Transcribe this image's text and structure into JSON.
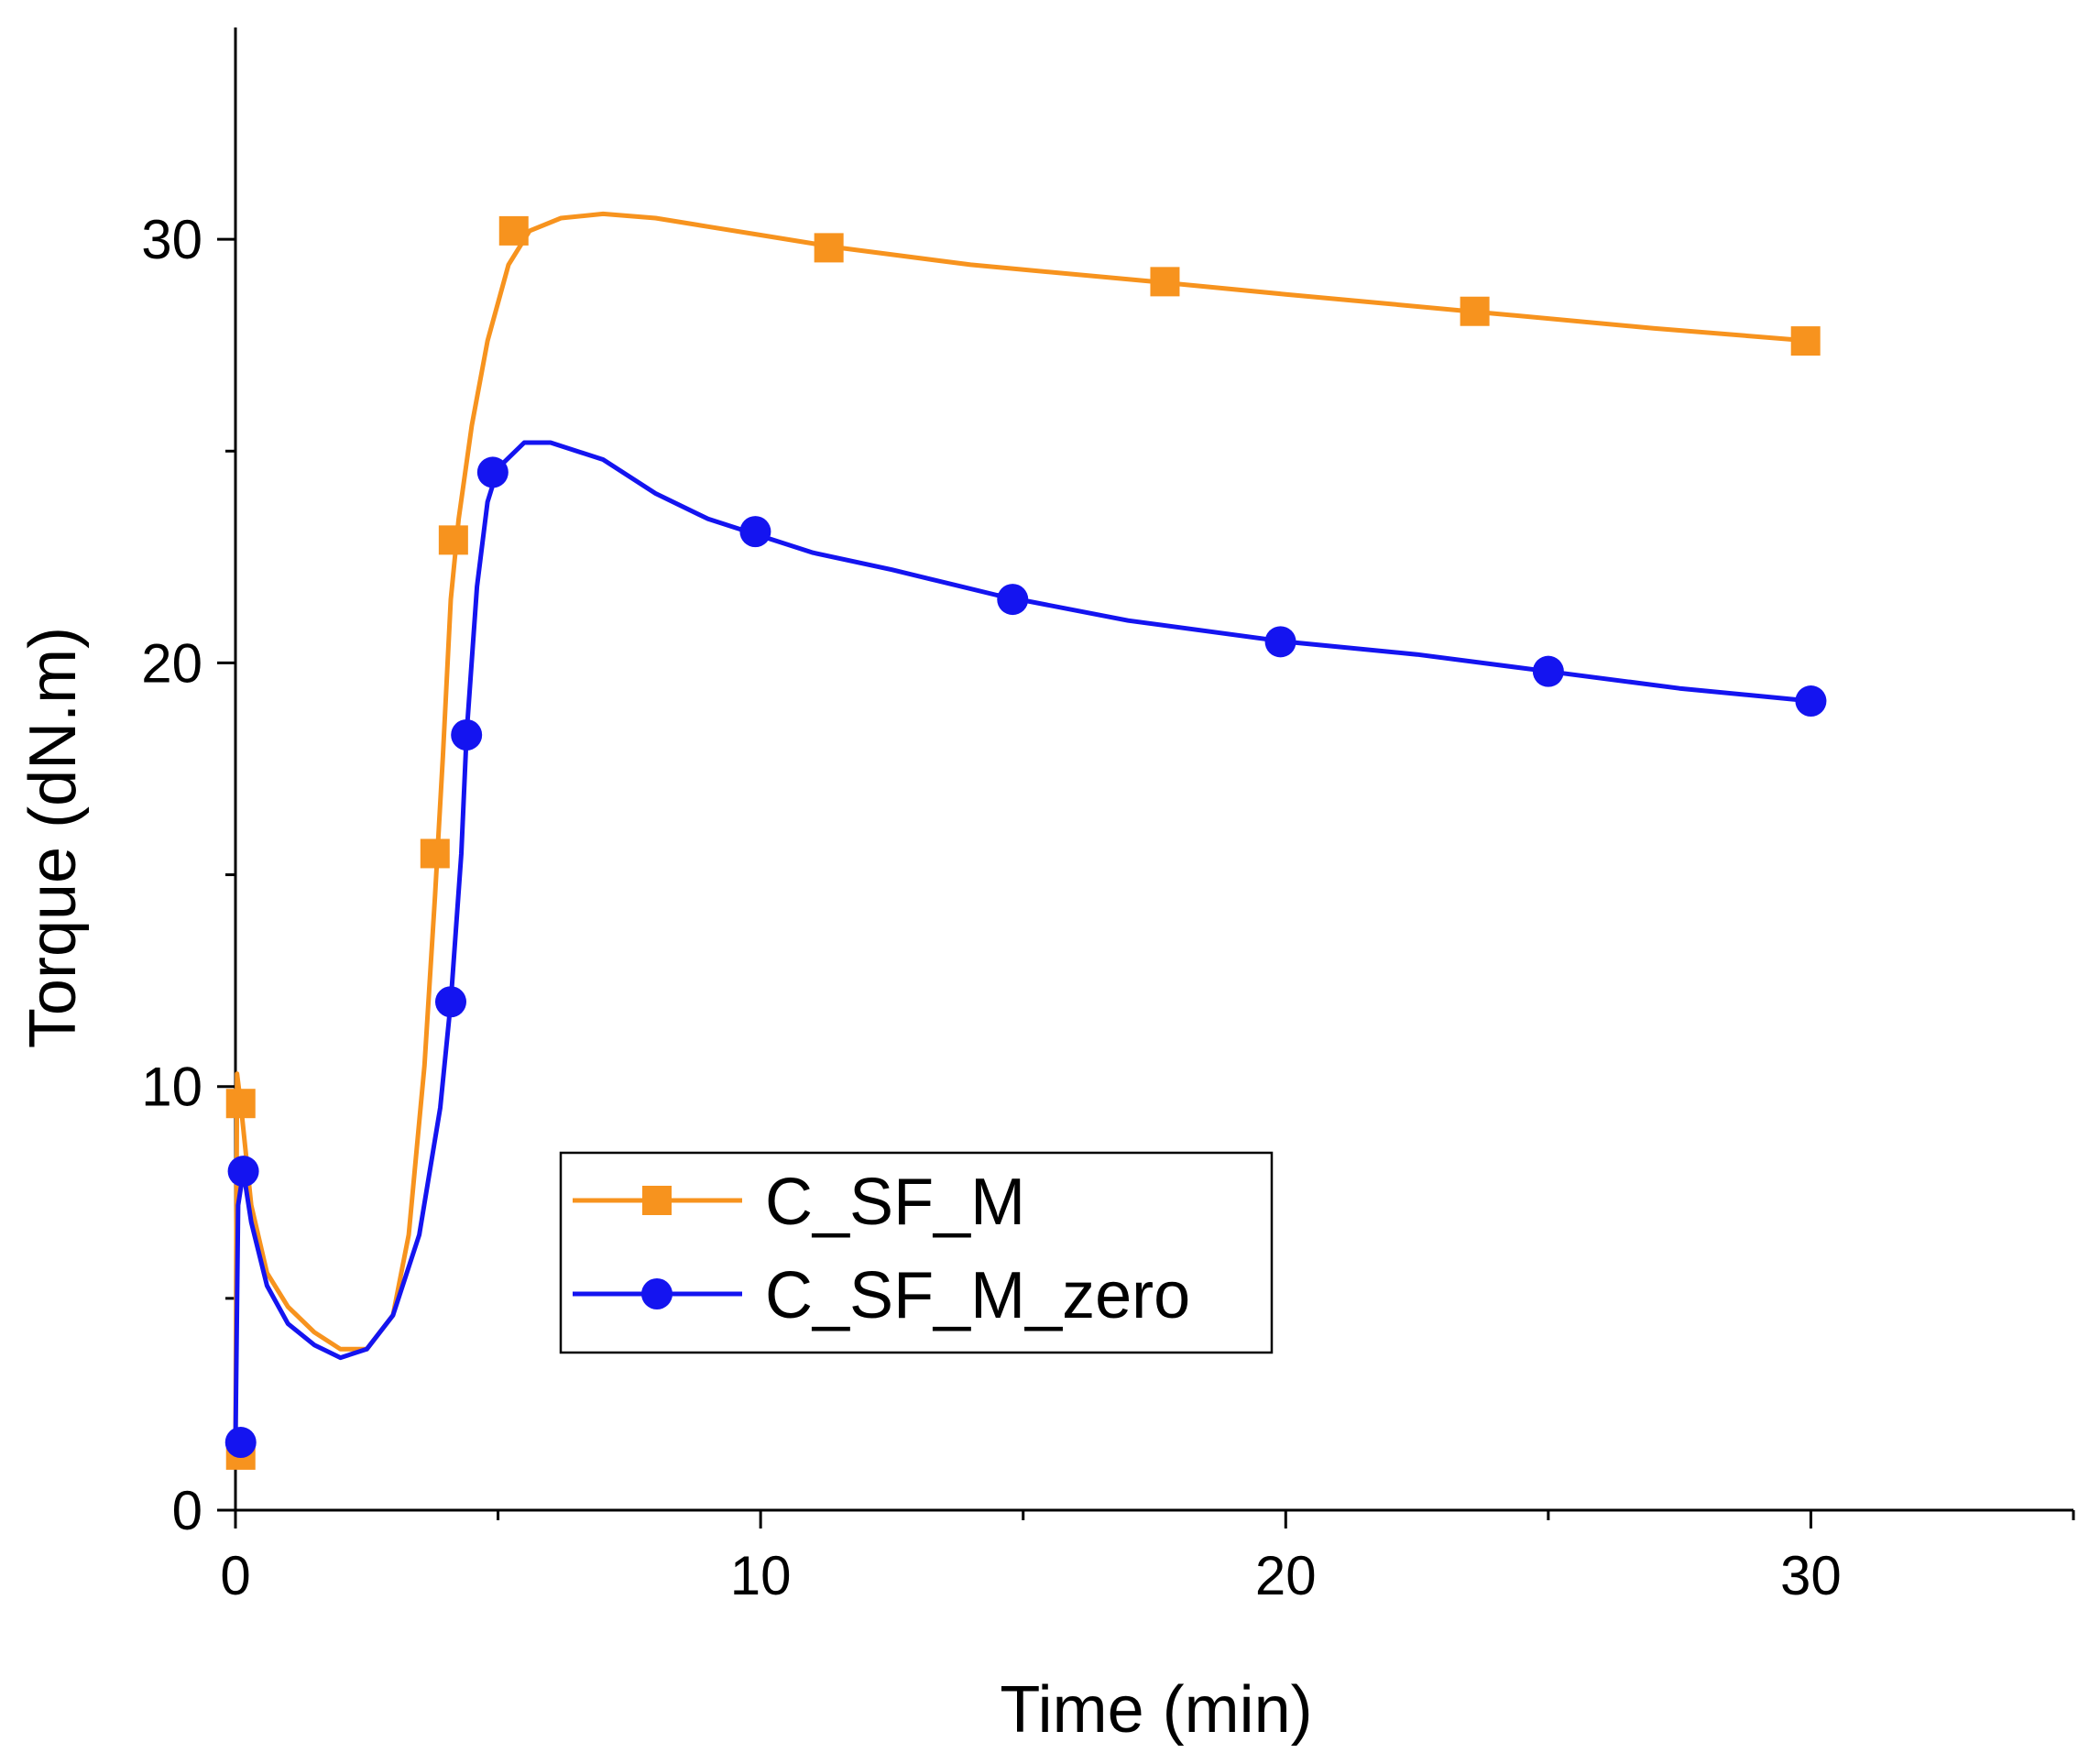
{
  "chart_data": {
    "type": "line",
    "title": "",
    "xlabel": "Time (min)",
    "ylabel": "Torque (dN.m)",
    "xlim": [
      0,
      35
    ],
    "ylim": [
      0,
      35
    ],
    "x_ticks": [
      0,
      10,
      20,
      30
    ],
    "x_minor_ticks": [
      5,
      15,
      25,
      35
    ],
    "y_ticks": [
      0,
      10,
      20,
      30
    ],
    "y_minor_ticks": [
      5,
      15,
      25
    ],
    "grid": false,
    "legend_position": "center-left",
    "series": [
      {
        "name": "C_SF_M",
        "color": "#F7931E",
        "marker": "square",
        "line": [
          [
            0,
            1.3
          ],
          [
            0.03,
            10.3
          ],
          [
            0.1,
            9.6
          ],
          [
            0.3,
            7.2
          ],
          [
            0.6,
            5.6
          ],
          [
            1,
            4.8
          ],
          [
            1.5,
            4.2
          ],
          [
            2,
            3.8
          ],
          [
            2.5,
            3.8
          ],
          [
            3,
            4.6
          ],
          [
            3.3,
            6.5
          ],
          [
            3.6,
            10.5
          ],
          [
            3.8,
            14.5
          ],
          [
            3.95,
            17.8
          ],
          [
            4.1,
            21.5
          ],
          [
            4.25,
            23.4
          ],
          [
            4.5,
            25.6
          ],
          [
            4.8,
            27.6
          ],
          [
            5.2,
            29.4
          ],
          [
            5.6,
            30.2
          ],
          [
            6.2,
            30.5
          ],
          [
            7,
            30.6
          ],
          [
            8,
            30.5
          ],
          [
            9,
            30.3
          ],
          [
            10,
            30.1
          ],
          [
            11.5,
            29.8
          ],
          [
            14,
            29.4
          ],
          [
            17.5,
            29.0
          ],
          [
            20,
            28.7
          ],
          [
            23.5,
            28.3
          ],
          [
            27,
            27.9
          ],
          [
            30,
            27.6
          ]
        ],
        "markers": [
          [
            0.1,
            9.6
          ],
          [
            0.1,
            1.3
          ],
          [
            3.8,
            15.5
          ],
          [
            4.15,
            22.9
          ],
          [
            5.3,
            30.2
          ],
          [
            11.3,
            29.8
          ],
          [
            17.7,
            29.0
          ],
          [
            23.6,
            28.3
          ],
          [
            29.9,
            27.6
          ]
        ]
      },
      {
        "name": "C_SF_M_zero",
        "color": "#1414F0",
        "marker": "circle",
        "line": [
          [
            0,
            1.6
          ],
          [
            0.05,
            7.2
          ],
          [
            0.15,
            8.0
          ],
          [
            0.3,
            6.8
          ],
          [
            0.6,
            5.3
          ],
          [
            1,
            4.4
          ],
          [
            1.5,
            3.9
          ],
          [
            2,
            3.6
          ],
          [
            2.5,
            3.8
          ],
          [
            3,
            4.6
          ],
          [
            3.5,
            6.5
          ],
          [
            3.9,
            9.5
          ],
          [
            4.1,
            12.0
          ],
          [
            4.3,
            15.5
          ],
          [
            4.4,
            18.3
          ],
          [
            4.6,
            21.8
          ],
          [
            4.8,
            23.8
          ],
          [
            5.0,
            24.6
          ],
          [
            5.5,
            25.2
          ],
          [
            6,
            25.2
          ],
          [
            7,
            24.8
          ],
          [
            8,
            24.0
          ],
          [
            9,
            23.4
          ],
          [
            10,
            23.0
          ],
          [
            11,
            22.6
          ],
          [
            12.5,
            22.2
          ],
          [
            14.5,
            21.6
          ],
          [
            17,
            21.0
          ],
          [
            20,
            20.5
          ],
          [
            22.5,
            20.2
          ],
          [
            25,
            19.8
          ],
          [
            27.5,
            19.4
          ],
          [
            30,
            19.1
          ]
        ],
        "markers": [
          [
            0.1,
            1.6
          ],
          [
            0.15,
            8.0
          ],
          [
            4.1,
            12.0
          ],
          [
            4.4,
            18.3
          ],
          [
            4.9,
            24.5
          ],
          [
            9.9,
            23.1
          ],
          [
            14.8,
            21.5
          ],
          [
            19.9,
            20.5
          ],
          [
            25.0,
            19.8
          ],
          [
            30.0,
            19.1
          ]
        ]
      }
    ]
  }
}
